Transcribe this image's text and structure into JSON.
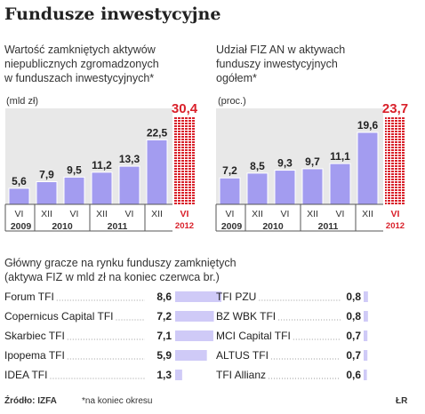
{
  "title": "Fundusze inwestycyjne",
  "colors": {
    "bar": "#a39cf0",
    "bar_light": "#cfcaf7",
    "accent_red": "#d9202a",
    "plot_bg": "#e8e8e8",
    "leader": "#9a9a9a"
  },
  "chart_data": [
    {
      "type": "bar",
      "subtitle": "Wartość zamkniętych aktywów niepublicznych zgromadzonych w funduszach inwestycyjnych*",
      "subtitle_lines": [
        "Wartość zamkniętych aktywów",
        "niepublicznych zgromadzonych",
        "w funduszach inwestycyjnych*"
      ],
      "unit": "(mld zł)",
      "categories": [
        "VI",
        "XII",
        "VI",
        "XII",
        "VI",
        "XII",
        "VI"
      ],
      "years": [
        "2009",
        "2010",
        "2011",
        "2012"
      ],
      "values": [
        5.6,
        7.9,
        9.5,
        11.2,
        13.3,
        22.5,
        30.4
      ],
      "labels": [
        "5,6",
        "7,9",
        "9,5",
        "11,2",
        "13,3",
        "22,5",
        "30,4"
      ],
      "highlight_index": 6,
      "ylim": [
        0,
        31
      ]
    },
    {
      "type": "bar",
      "subtitle": "Udział FIZ AN w aktywach funduszy inwestycyjnych ogółem*",
      "subtitle_lines": [
        "Udział FIZ AN w aktywach",
        "funduszy inwestycyjnych",
        "ogółem*"
      ],
      "unit": "(proc.)",
      "categories": [
        "VI",
        "XII",
        "VI",
        "XII",
        "VI",
        "XII",
        "VI"
      ],
      "years": [
        "2009",
        "2010",
        "2011",
        "2012"
      ],
      "values": [
        7.2,
        8.5,
        9.3,
        9.7,
        11.1,
        19.6,
        23.7
      ],
      "labels": [
        "7,2",
        "8,5",
        "9,3",
        "9,7",
        "11,1",
        "19,6",
        "23,7"
      ],
      "highlight_index": 6,
      "ylim": [
        0,
        24.2
      ]
    },
    {
      "type": "bar",
      "orientation": "horizontal",
      "title_lines": [
        "Główny gracze na rynku funduszy zamkniętych",
        "(aktywa FIZ w mld zł na koniec czerwca br.)"
      ],
      "left": [
        {
          "name": "Forum TFI",
          "value": 8.6,
          "label": "8,6"
        },
        {
          "name": "Copernicus Capital TFI",
          "value": 7.2,
          "label": "7,2"
        },
        {
          "name": "Skarbiec TFI",
          "value": 7.1,
          "label": "7,1"
        },
        {
          "name": "Ipopema TFI",
          "value": 5.9,
          "label": "5,9"
        },
        {
          "name": "IDEA TFI",
          "value": 1.3,
          "label": "1,3"
        }
      ],
      "right": [
        {
          "name": "TFI PZU",
          "value": 0.8,
          "label": "0,8"
        },
        {
          "name": "BZ WBK TFI",
          "value": 0.8,
          "label": "0,8"
        },
        {
          "name": "MCI Capital TFI",
          "value": 0.7,
          "label": "0,7"
        },
        {
          "name": "ALTUS TFI",
          "value": 0.7,
          "label": "0,7"
        },
        {
          "name": "TFI Allianz",
          "value": 0.6,
          "label": "0,6"
        }
      ],
      "xlim": [
        0,
        8.6
      ]
    }
  ],
  "footer": {
    "source": "Źródło: IZFA",
    "note": "*na koniec okresu",
    "signature": "ŁR"
  }
}
